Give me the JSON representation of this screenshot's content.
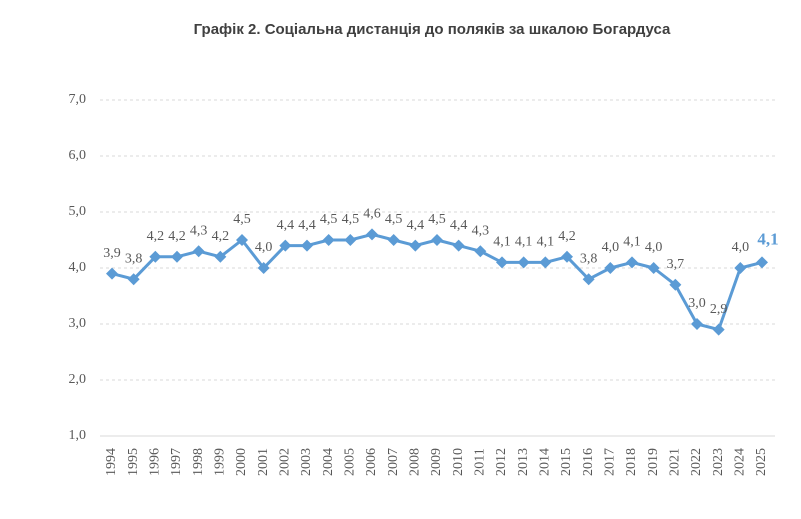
{
  "chart_data": {
    "type": "line",
    "title": "Графік 2. Соціальна дистанція до поляків за шкалою Богардуса",
    "categories": [
      "1994",
      "1995",
      "1996",
      "1997",
      "1998",
      "1999",
      "2000",
      "2001",
      "2002",
      "2003",
      "2004",
      "2005",
      "2006",
      "2007",
      "2008",
      "2009",
      "2010",
      "2011",
      "2012",
      "2013",
      "2014",
      "2015",
      "2016",
      "2017",
      "2018",
      "2019",
      "2021",
      "2022",
      "2023",
      "2024",
      "2025"
    ],
    "series": [
      {
        "color": "#5b9bd5",
        "values": [
          3.9,
          3.8,
          4.2,
          4.2,
          4.3,
          4.2,
          4.5,
          4.0,
          4.4,
          4.4,
          4.5,
          4.5,
          4.6,
          4.5,
          4.4,
          4.5,
          4.4,
          4.3,
          4.1,
          4.1,
          4.1,
          4.2,
          3.8,
          4.0,
          4.1,
          4.0,
          3.7,
          3.0,
          2.9,
          4.0,
          4.1
        ],
        "value_labels": [
          "3,9",
          "3,8",
          "4,2",
          "4,2",
          "4,3",
          "4,2",
          "4,5",
          "4,0",
          "4,4",
          "4,4",
          "4,5",
          "4,5",
          "4,6",
          "4,5",
          "4,4",
          "4,5",
          "4,4",
          "4,3",
          "4,1",
          "4,1",
          "4,1",
          "4,2",
          "3,8",
          "4,0",
          "4,1",
          "4,0",
          "3,7",
          "3,0",
          "2,9",
          "4,0",
          "4,1"
        ]
      }
    ],
    "ylim": [
      1,
      7
    ],
    "yticks": [
      {
        "value": 1,
        "label": "1,0"
      },
      {
        "value": 2,
        "label": "2,0"
      },
      {
        "value": 3,
        "label": "3,0"
      },
      {
        "value": 4,
        "label": "4,0"
      },
      {
        "value": 5,
        "label": "5,0"
      },
      {
        "value": 6,
        "label": "6,0"
      },
      {
        "value": 7,
        "label": "7,0"
      }
    ],
    "grid": true
  }
}
